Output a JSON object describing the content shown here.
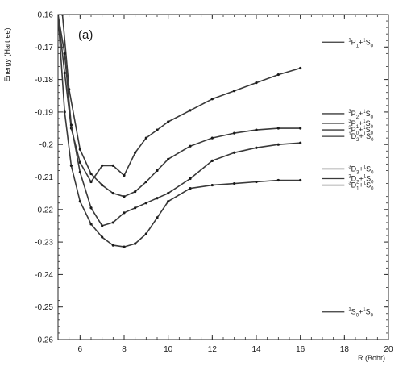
{
  "chart_data": {
    "type": "line",
    "panel_label": "(a)",
    "xlabel": "R (Bohr)",
    "ylabel": "Energy (Hartree)",
    "xlim": [
      5,
      20
    ],
    "ylim": [
      -0.26,
      -0.16
    ],
    "x_ticks": [
      6,
      8,
      10,
      12,
      14,
      16,
      18,
      20
    ],
    "y_ticks": [
      -0.26,
      -0.25,
      -0.24,
      -0.23,
      -0.22,
      -0.21,
      -0.2,
      -0.19,
      -0.18,
      -0.17,
      -0.16
    ],
    "x_tick_labels": [
      "6",
      "8",
      "10",
      "12",
      "14",
      "16",
      "18",
      "20"
    ],
    "y_tick_labels": [
      "-0.26",
      "-0.25",
      "-0.24",
      "-0.23",
      "-0.22",
      "-0.21",
      "-0.2",
      "-0.19",
      "-0.18",
      "-0.17",
      "-0.16"
    ],
    "grid": false,
    "series": [
      {
        "x": [
          5.0,
          5.3,
          5.6,
          6.0,
          6.5,
          7.0,
          7.5,
          8.0,
          8.5,
          9.0,
          9.5,
          10,
          11,
          12,
          13,
          14,
          15,
          16
        ],
        "y": [
          -0.16,
          -0.178,
          -0.195,
          -0.2055,
          -0.2115,
          -0.2065,
          -0.2065,
          -0.2095,
          -0.2025,
          -0.198,
          -0.1955,
          -0.193,
          -0.1895,
          -0.186,
          -0.1835,
          -0.181,
          -0.1785,
          -0.1765
        ]
      },
      {
        "x": [
          5.2,
          5.5,
          6.0,
          6.5,
          7.0,
          7.5,
          8.0,
          8.5,
          9.0,
          9.5,
          10,
          11,
          12,
          13,
          14,
          15,
          16
        ],
        "y": [
          -0.16,
          -0.183,
          -0.2015,
          -0.209,
          -0.2125,
          -0.215,
          -0.216,
          -0.2145,
          -0.2115,
          -0.208,
          -0.2045,
          -0.2005,
          -0.198,
          -0.1965,
          -0.1955,
          -0.195,
          -0.195
        ]
      },
      {
        "x": [
          5.0,
          5.3,
          5.6,
          6.0,
          6.5,
          7.0,
          7.5,
          8.0,
          8.5,
          9.0,
          9.5,
          10,
          11,
          12,
          13,
          14,
          15,
          16
        ],
        "y": [
          -0.16,
          -0.172,
          -0.194,
          -0.2085,
          -0.2195,
          -0.225,
          -0.224,
          -0.221,
          -0.2195,
          -0.218,
          -0.2165,
          -0.215,
          -0.2105,
          -0.205,
          -0.2025,
          -0.201,
          -0.2,
          -0.1995
        ]
      },
      {
        "x": [
          5.0,
          5.3,
          5.6,
          6.0,
          6.5,
          7.0,
          7.5,
          8.0,
          8.5,
          9.0,
          9.5,
          10,
          11,
          12,
          13,
          14,
          15,
          16
        ],
        "y": [
          -0.16,
          -0.19,
          -0.2065,
          -0.2175,
          -0.2245,
          -0.2285,
          -0.231,
          -0.2315,
          -0.2305,
          -0.2275,
          -0.2225,
          -0.2175,
          -0.2135,
          -0.2125,
          -0.212,
          -0.2115,
          -0.211,
          -0.211
        ]
      }
    ],
    "asymptotes": [
      {
        "y": -0.1685,
        "label_sup1": "1",
        "label_mid": "P",
        "label_sub1": "1",
        "label_sep": "+",
        "label_sup2": "1",
        "label_end": "S",
        "label_sub2": "0"
      },
      {
        "y": -0.1905,
        "label_sup1": "3",
        "label_mid": "P",
        "label_sub1": "2",
        "label_sep": "+",
        "label_sup2": "1",
        "label_end": "S",
        "label_sub2": "0"
      },
      {
        "y": -0.1935,
        "label_sup1": "3",
        "label_mid": "P",
        "label_sub1": "1",
        "label_sep": "+",
        "label_sup2": "1",
        "label_end": "S",
        "label_sub2": "0"
      },
      {
        "y": -0.1955,
        "label_sup1": "3",
        "label_mid": "P",
        "label_sub1": "0",
        "label_sep": "+",
        "label_sup2": "1",
        "label_end": "S",
        "label_sub2": "0"
      },
      {
        "y": -0.1975,
        "label_sup1": "1",
        "label_mid": "D",
        "label_sub1": "2",
        "label_sep": "+",
        "label_sup2": "1",
        "label_end": "S",
        "label_sub2": "0"
      },
      {
        "y": -0.2075,
        "label_sup1": "3",
        "label_mid": "D",
        "label_sub1": "3",
        "label_sep": "+",
        "label_sup2": "1",
        "label_end": "S",
        "label_sub2": "0"
      },
      {
        "y": -0.2105,
        "label_sup1": "3",
        "label_mid": "D",
        "label_sub1": "2",
        "label_sep": "+",
        "label_sup2": "1",
        "label_end": "S",
        "label_sub2": "0"
      },
      {
        "y": -0.2125,
        "label_sup1": "3",
        "label_mid": "D",
        "label_sub1": "1",
        "label_sep": "+",
        "label_sup2": "1",
        "label_end": "S",
        "label_sub2": "0"
      },
      {
        "y": -0.2515,
        "label_sup1": "1",
        "label_mid": "S",
        "label_sub1": "0",
        "label_sep": "+",
        "label_sup2": "1",
        "label_end": "S",
        "label_sub2": "0"
      }
    ],
    "asymptote_x_range": [
      17.0,
      18.0
    ],
    "colors": {
      "line": "#3a3a3a",
      "marker": "#1a1a1a",
      "frame": "#2a2a2a"
    }
  }
}
